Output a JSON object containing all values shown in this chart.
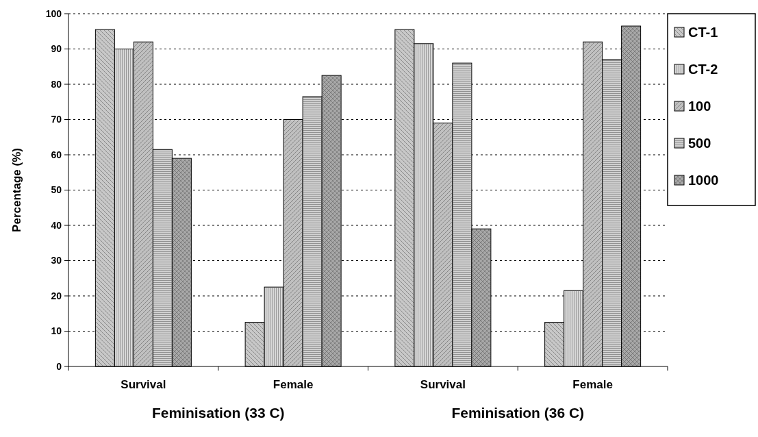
{
  "chart_data": {
    "type": "bar",
    "ylabel": "Percentage (%)",
    "categories": [
      "Survival",
      "Female",
      "Survival",
      "Female"
    ],
    "series": [
      {
        "name": "CT-1",
        "color": "#c8c8c8",
        "values": [
          95.5,
          12.5,
          95.5,
          12.5
        ]
      },
      {
        "name": "CT-2",
        "color": "#d8d8d8",
        "values": [
          90,
          22.5,
          91.5,
          21.5
        ]
      },
      {
        "name": "100",
        "color": "#c0c0c0",
        "values": [
          92,
          70,
          69,
          92
        ]
      },
      {
        "name": "500",
        "color": "#d0d0d0",
        "values": [
          61.5,
          76.5,
          86,
          87
        ]
      },
      {
        "name": "1000",
        "color": "#a8a8a8",
        "values": [
          59,
          82.5,
          39,
          96.5
        ]
      }
    ],
    "ylim": [
      0,
      100
    ],
    "yticks": [
      0,
      10,
      20,
      30,
      40,
      50,
      60,
      70,
      80,
      90,
      100
    ],
    "grid": "y",
    "legend": "top right",
    "annotations": [
      "Feminisation (33 C)",
      "Feminisation (36 C)"
    ]
  }
}
